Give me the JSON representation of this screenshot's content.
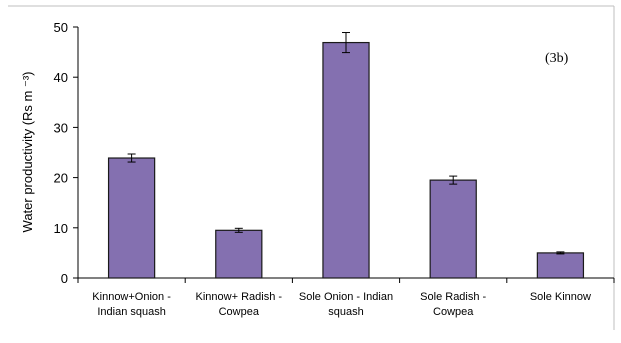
{
  "chart_data": {
    "type": "bar",
    "title": "",
    "panel_label": "(3b)",
    "xlabel": "",
    "ylabel": "Water productivity (Rs m ⁻³)",
    "ylim": [
      0,
      50
    ],
    "yticks": [
      0,
      10,
      20,
      30,
      40,
      50
    ],
    "grid": false,
    "categories": [
      [
        "Kinnow+Onion -",
        "Indian squash"
      ],
      [
        "Kinnow+ Radish -",
        "Cowpea"
      ],
      [
        "Sole Onion - Indian",
        "squash"
      ],
      [
        "Sole Radish -",
        "Cowpea"
      ],
      [
        "Sole Kinnow"
      ]
    ],
    "values": [
      23.9,
      9.5,
      46.9,
      19.5,
      5.0
    ],
    "errors": [
      0.8,
      0.4,
      2.0,
      0.8,
      0.2
    ],
    "bar_color": "#8470b0",
    "bar_edge_color": "#1a1a1a"
  }
}
